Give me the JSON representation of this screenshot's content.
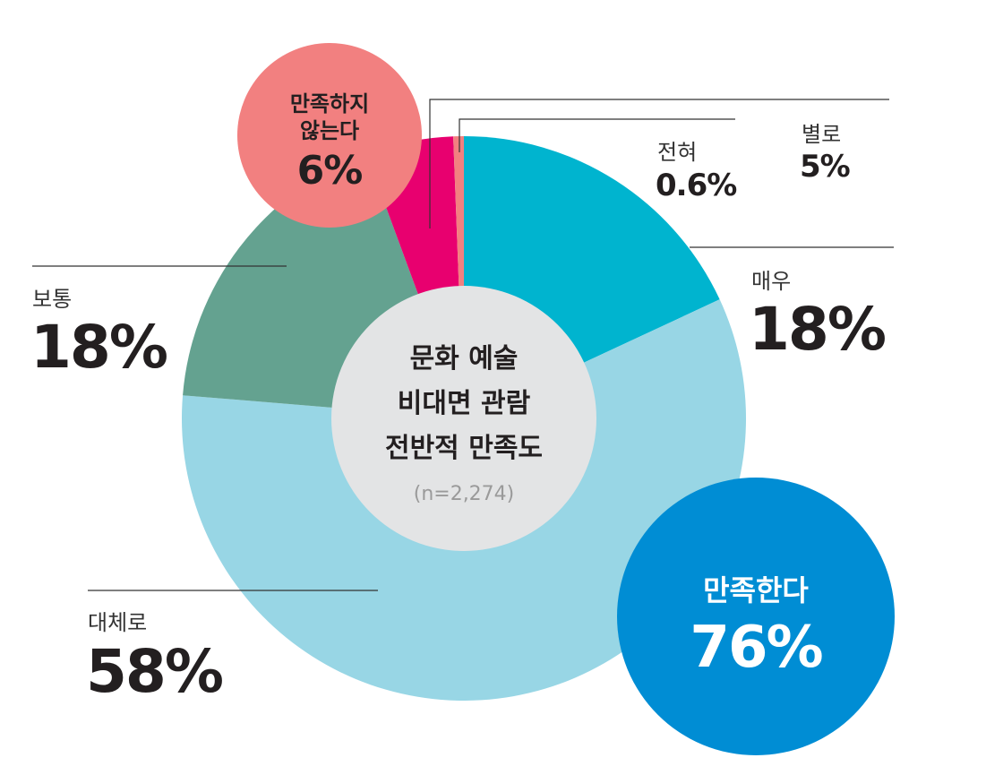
{
  "chart_data": {
    "type": "pie",
    "title": "문화 예술 비대면 관람 전반적 만족도",
    "sample": "(n=2,274)",
    "categories": [
      "매우",
      "대체로",
      "보통",
      "별로",
      "전혀"
    ],
    "values": [
      18,
      58,
      18,
      5,
      0.6
    ],
    "value_labels": [
      "18%",
      "58%",
      "18%",
      "5%",
      "0.6%"
    ],
    "colors": [
      "#00b4cf",
      "#98d6e5",
      "#64a290",
      "#e8006f",
      "#f28080"
    ],
    "groups": [
      {
        "label": "만족한다",
        "value": 76,
        "value_label": "76%",
        "color": "#008dd4"
      },
      {
        "label_lines": [
          "만족하지",
          "않는다"
        ],
        "value": 6,
        "value_label": "6%",
        "color": "#f28080"
      }
    ]
  }
}
